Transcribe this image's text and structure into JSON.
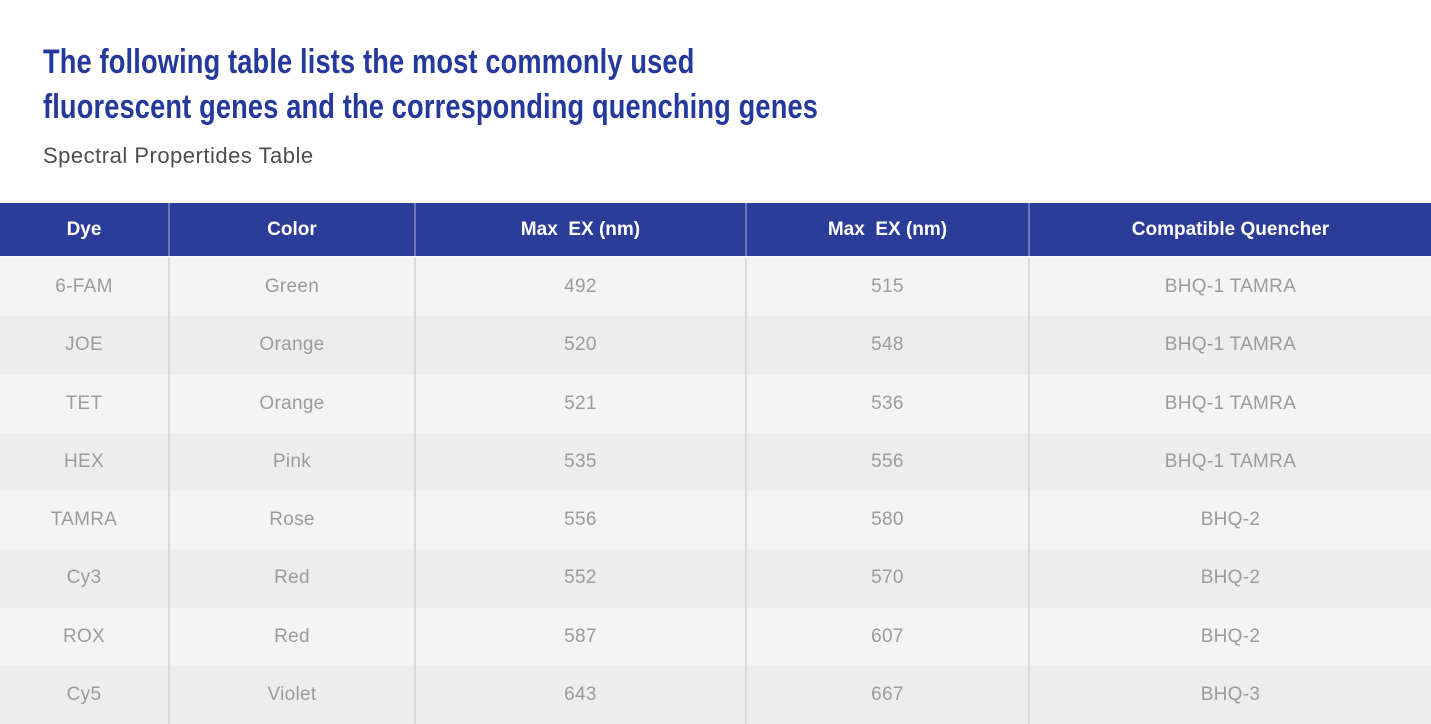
{
  "page": {
    "title_line1": "The following table lists the most commonly used",
    "title_line2": "fluorescent genes and the corresponding quenching genes",
    "subtitle": "Spectral Propertides Table"
  },
  "colors": {
    "title_text": "#24399b",
    "subtitle_text": "#4e4e4e",
    "header_bg": "#2b3c99",
    "header_text": "#ffffff",
    "row_light": "#f4f4f5",
    "row_dark": "#ededee",
    "row_text": "#9b9b9f",
    "divider": "#d9d9db"
  },
  "table": {
    "columns": [
      "Dye",
      "Color",
      "Max  EX (nm)",
      "Max  EX (nm)",
      "Compatible Quencher"
    ],
    "rows": [
      {
        "dye": "6-FAM",
        "color": "Green",
        "max_ex_1": "492",
        "max_ex_2": "515",
        "quencher": "BHQ-1 TAMRA"
      },
      {
        "dye": "JOE",
        "color": "Orange",
        "max_ex_1": "520",
        "max_ex_2": "548",
        "quencher": "BHQ-1 TAMRA"
      },
      {
        "dye": "TET",
        "color": "Orange",
        "max_ex_1": "521",
        "max_ex_2": "536",
        "quencher": "BHQ-1 TAMRA"
      },
      {
        "dye": "HEX",
        "color": "Pink",
        "max_ex_1": "535",
        "max_ex_2": "556",
        "quencher": "BHQ-1 TAMRA"
      },
      {
        "dye": "TAMRA",
        "color": "Rose",
        "max_ex_1": "556",
        "max_ex_2": "580",
        "quencher": "BHQ-2"
      },
      {
        "dye": "Cy3",
        "color": "Red",
        "max_ex_1": "552",
        "max_ex_2": "570",
        "quencher": "BHQ-2"
      },
      {
        "dye": "ROX",
        "color": "Red",
        "max_ex_1": "587",
        "max_ex_2": "607",
        "quencher": "BHQ-2"
      },
      {
        "dye": "Cy5",
        "color": "Violet",
        "max_ex_1": "643",
        "max_ex_2": "667",
        "quencher": "BHQ-3"
      }
    ]
  }
}
